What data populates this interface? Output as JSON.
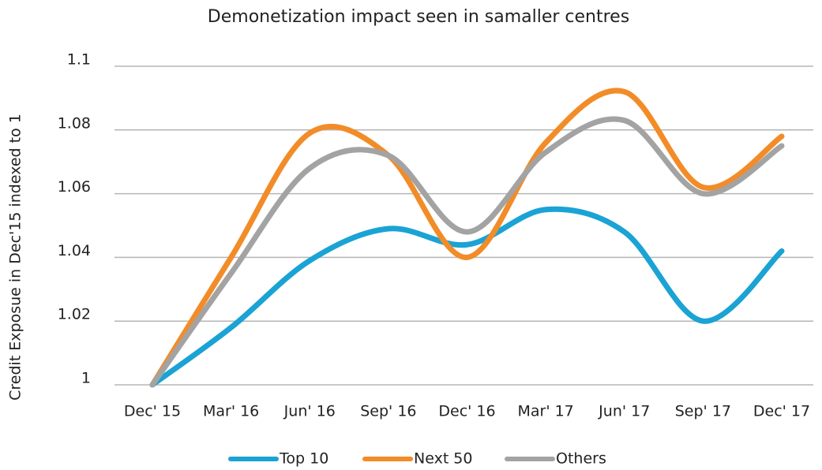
{
  "chart_data": {
    "type": "line",
    "title": "Demonetization impact seen in samaller centres",
    "y_label": "Credit Exposue in Dec'15 indexed to 1",
    "categories": [
      "Dec' 15",
      "Mar' 16",
      "Jun' 16",
      "Sep' 16",
      "Dec' 16",
      "Mar' 17",
      "Jun' 17",
      "Sep' 17",
      "Dec' 17"
    ],
    "series": [
      {
        "name": "Top 10",
        "color": "#1aa3d4",
        "values": [
          1.0,
          1.018,
          1.039,
          1.049,
          1.044,
          1.055,
          1.048,
          1.02,
          1.042
        ]
      },
      {
        "name": "Next 50",
        "color": "#f28c28",
        "values": [
          1.0,
          1.04,
          1.079,
          1.072,
          1.04,
          1.076,
          1.092,
          1.062,
          1.078
        ]
      },
      {
        "name": "Others",
        "color": "#a3a3a3",
        "values": [
          1.0,
          1.035,
          1.068,
          1.072,
          1.048,
          1.073,
          1.083,
          1.06,
          1.075
        ]
      }
    ],
    "ylim": [
      1,
      1.1
    ],
    "yticks": [
      1,
      1.02,
      1.04,
      1.06,
      1.08,
      1.1
    ],
    "grid": true,
    "legend": "bottom"
  }
}
